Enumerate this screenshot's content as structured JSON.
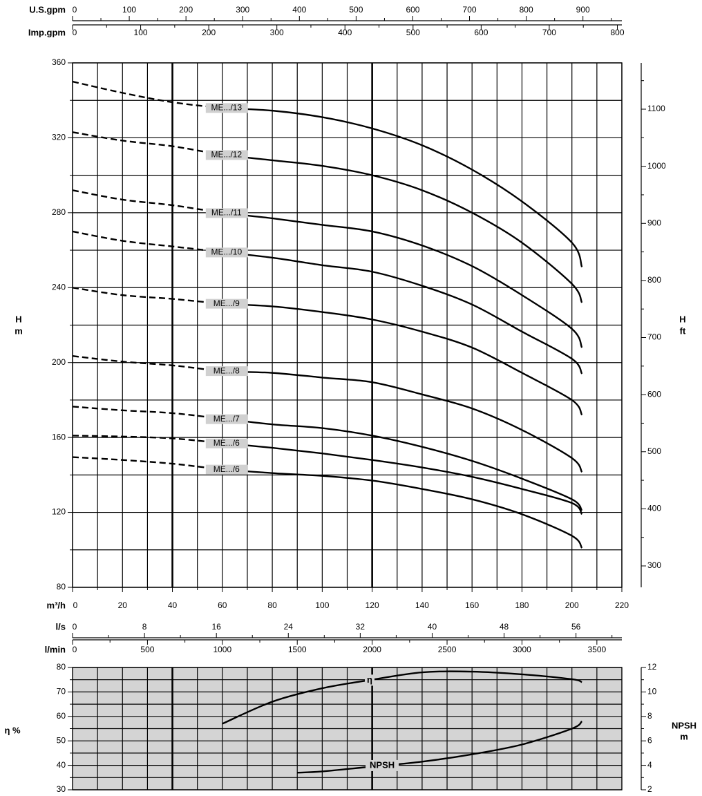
{
  "chart_data": [
    {
      "type": "line",
      "xlabel": "m³/h",
      "ylabel": "H",
      "ylabel_unit": "m",
      "y2label": "H",
      "y2label_unit": "ft",
      "xlim": [
        0,
        220
      ],
      "xticks": [
        0,
        20,
        40,
        60,
        80,
        100,
        120,
        140,
        160,
        180,
        200,
        220
      ],
      "x_minor_ticks": [
        10,
        30,
        50,
        70,
        90,
        110,
        130,
        150,
        170,
        190,
        210
      ],
      "x_emphasis": [
        40,
        120
      ],
      "ylim": [
        80,
        360
      ],
      "yticks": [
        80,
        120,
        160,
        200,
        240,
        280,
        320,
        360
      ],
      "y_minor_ticks": [
        100,
        140,
        180,
        220,
        260,
        300,
        340
      ],
      "y2lim": [
        262.5,
        1181.1
      ],
      "y2ticks": [
        300,
        400,
        500,
        600,
        700,
        800,
        900,
        1000,
        1100
      ],
      "y2_minor_ticks": [
        350,
        450,
        550,
        650,
        750,
        850,
        950,
        1050,
        1150
      ],
      "grid": true,
      "plot_background": "#ffffff",
      "top_axes": [
        {
          "label": "U.S.gpm",
          "xlim": [
            0,
            968.6
          ],
          "xticks": [
            0,
            100,
            200,
            300,
            400,
            500,
            600,
            700,
            800,
            900
          ],
          "minor_ticks": [
            50,
            150,
            250,
            350,
            450,
            550,
            650,
            750,
            850,
            950
          ]
        },
        {
          "label": "Imp.gpm",
          "xlim": [
            0,
            806.6
          ],
          "xticks": [
            0,
            100,
            200,
            300,
            400,
            500,
            600,
            700,
            800
          ],
          "minor_ticks": [
            50,
            150,
            250,
            350,
            450,
            550,
            650,
            750
          ]
        }
      ],
      "series": [
        {
          "name": "ME.../13",
          "color": "#000000",
          "dashed_until_x": 60,
          "x": [
            0,
            20,
            40,
            60,
            80,
            100,
            120,
            140,
            160,
            180,
            200,
            204
          ],
          "values": [
            350,
            344,
            339,
            336,
            334.5,
            331,
            325,
            316,
            303,
            286,
            264,
            251
          ]
        },
        {
          "name": "ME.../12",
          "color": "#000000",
          "dashed_until_x": 60,
          "x": [
            0,
            20,
            40,
            60,
            80,
            100,
            120,
            140,
            160,
            180,
            200,
            204
          ],
          "values": [
            323,
            318.5,
            315.5,
            311,
            308,
            305,
            300,
            292,
            280,
            264,
            242,
            232
          ]
        },
        {
          "name": "ME.../11",
          "color": "#000000",
          "dashed_until_x": 60,
          "x": [
            0,
            20,
            40,
            60,
            80,
            100,
            120,
            140,
            160,
            180,
            200,
            204
          ],
          "values": [
            292,
            287,
            284,
            280,
            277,
            273.5,
            270,
            262.5,
            251.5,
            236,
            218,
            208
          ]
        },
        {
          "name": "ME.../10",
          "color": "#000000",
          "dashed_until_x": 60,
          "x": [
            0,
            20,
            40,
            60,
            80,
            100,
            120,
            140,
            160,
            180,
            200,
            204
          ],
          "values": [
            270,
            265,
            262,
            259,
            256,
            252,
            248.5,
            241,
            231,
            216.5,
            202,
            194
          ]
        },
        {
          "name": "ME.../9",
          "color": "#000000",
          "dashed_until_x": 60,
          "x": [
            0,
            20,
            40,
            60,
            80,
            100,
            120,
            140,
            160,
            180,
            200,
            204
          ],
          "values": [
            240,
            236,
            234,
            231.5,
            230,
            227,
            223,
            216.5,
            208,
            194.5,
            180,
            172
          ]
        },
        {
          "name": "ME.../8",
          "color": "#000000",
          "dashed_until_x": 60,
          "x": [
            0,
            20,
            40,
            60,
            80,
            100,
            120,
            140,
            160,
            180,
            200,
            204
          ],
          "values": [
            203.5,
            200.5,
            198.5,
            195.5,
            194.5,
            192,
            189.5,
            183,
            175.5,
            164,
            149,
            141.5
          ]
        },
        {
          "name": "ME.../7",
          "color": "#000000",
          "dashed_until_x": 60,
          "x": [
            0,
            20,
            40,
            60,
            80,
            100,
            120,
            140,
            160,
            180,
            200,
            204
          ],
          "values": [
            176.5,
            174.5,
            173,
            170,
            167,
            165,
            161,
            155,
            147.5,
            138,
            127,
            121
          ]
        },
        {
          "name": "ME.../6",
          "color": "#000000",
          "dashed_until_x": 60,
          "x": [
            0,
            20,
            40,
            60,
            80,
            100,
            120,
            140,
            160,
            180,
            200,
            204
          ],
          "values": [
            161,
            160.5,
            159.5,
            157,
            154.5,
            151.5,
            148,
            144,
            139,
            132.5,
            125,
            119
          ]
        },
        {
          "name": "ME.../6",
          "color": "#000000",
          "dashed_until_x": 60,
          "x": [
            0,
            20,
            40,
            60,
            80,
            100,
            120,
            140,
            160,
            180,
            200,
            204
          ],
          "values": [
            149.5,
            148,
            146,
            143,
            141,
            139.5,
            137,
            132.5,
            127,
            119,
            107.5,
            101
          ]
        }
      ]
    },
    {
      "type": "line",
      "ylabel": "η %",
      "y2label": "NPSH",
      "y2label_unit": "m",
      "xlim": [
        0,
        220
      ],
      "x_grid": [
        10,
        20,
        30,
        40,
        50,
        60,
        70,
        80,
        90,
        100,
        110,
        120,
        130,
        140,
        150,
        160,
        170,
        180,
        190,
        200,
        210
      ],
      "x_emphasis": [
        40,
        120
      ],
      "ylim": [
        30,
        80
      ],
      "yticks": [
        30,
        40,
        50,
        60,
        70,
        80
      ],
      "y_minor_ticks": [
        35,
        45,
        55,
        65,
        75
      ],
      "y2lim": [
        2,
        12
      ],
      "y2ticks": [
        2,
        4,
        6,
        8,
        10,
        12
      ],
      "y2_minor_ticks": [
        3,
        5,
        7,
        9,
        11
      ],
      "grid": true,
      "plot_background": "#d4d4d4",
      "top_axes": [
        {
          "label": "l/s",
          "xlim": [
            0,
            61.1
          ],
          "xticks": [
            0,
            8,
            16,
            24,
            32,
            40,
            48,
            56
          ],
          "minor_ticks": [
            4,
            12,
            20,
            28,
            36,
            44,
            52,
            60
          ]
        },
        {
          "label": "l/min",
          "xlim": [
            0,
            3666.7
          ],
          "xticks": [
            0,
            500,
            1000,
            1500,
            2000,
            2500,
            3000,
            3500
          ],
          "minor_ticks": [
            250,
            750,
            1250,
            1750,
            2250,
            2750,
            3250
          ]
        }
      ],
      "series": [
        {
          "name": "η",
          "color": "#000000",
          "axis": "y",
          "x": [
            60,
            80,
            100,
            120,
            140,
            160,
            180,
            200,
            204
          ],
          "values": [
            57,
            66,
            71.5,
            75,
            78,
            78.3,
            77.2,
            75.2,
            74
          ]
        },
        {
          "name": "NPSH",
          "color": "#000000",
          "axis": "y2",
          "x": [
            90,
            100,
            120,
            140,
            160,
            180,
            200,
            204
          ],
          "values": [
            3.4,
            3.5,
            3.9,
            4.3,
            4.9,
            5.7,
            7.0,
            7.6
          ]
        }
      ]
    }
  ]
}
